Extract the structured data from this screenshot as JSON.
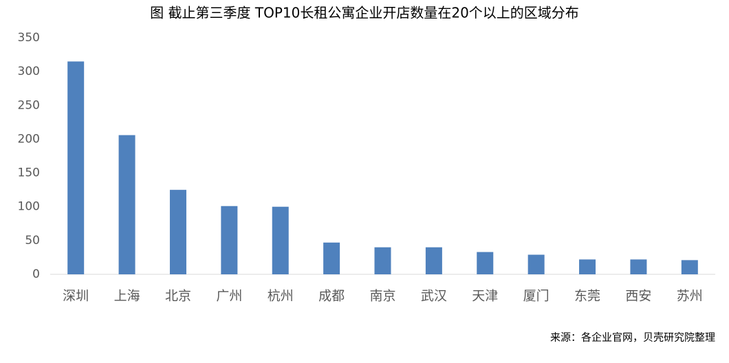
{
  "chart_data": {
    "type": "bar",
    "title": "图 截止第三季度 TOP10长租公寓企业开店数量在20个以上的区域分布",
    "categories": [
      "深圳",
      "上海",
      "北京",
      "广州",
      "杭州",
      "成都",
      "南京",
      "武汉",
      "天津",
      "厦门",
      "东莞",
      "西安",
      "苏州"
    ],
    "values": [
      315,
      206,
      125,
      101,
      100,
      47,
      40,
      40,
      33,
      29,
      22,
      22,
      21
    ],
    "color": "#4f81bd",
    "ylim": [
      0,
      350
    ],
    "yticks": [
      0,
      50,
      100,
      150,
      200,
      250,
      300,
      350
    ],
    "grid": false,
    "source": "来源：各企业官网，贝壳研究院整理"
  }
}
